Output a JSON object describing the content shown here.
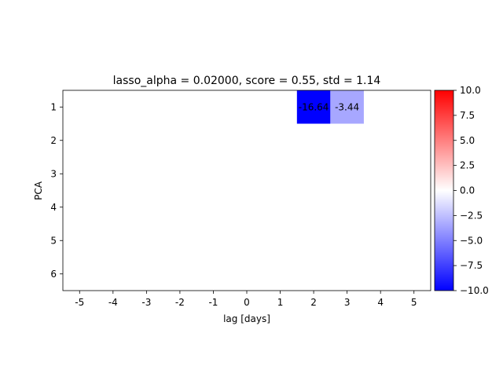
{
  "chart_data": {
    "type": "heatmap",
    "title": "lasso_alpha = 0.02000, score = 0.55, std = 1.14",
    "xlabel": "lag [days]",
    "ylabel": "PCA",
    "x": [
      -5,
      -4,
      -3,
      -2,
      -1,
      0,
      1,
      2,
      3,
      4,
      5
    ],
    "y": [
      1,
      2,
      3,
      4,
      5,
      6
    ],
    "xtick_labels": [
      "-5",
      "-4",
      "-3",
      "-2",
      "-1",
      "0",
      "1",
      "2",
      "3",
      "4",
      "5"
    ],
    "ytick_labels": [
      "1",
      "2",
      "3",
      "4",
      "5",
      "6"
    ],
    "cells": [
      {
        "x": 2,
        "y": 1,
        "value": -16.64,
        "label": "-16.64"
      },
      {
        "x": 3,
        "y": 1,
        "value": -3.44,
        "label": "-3.44"
      }
    ],
    "default_value": 0,
    "colormap": "bwr",
    "vmin": -10,
    "vmax": 10,
    "colorbar_ticks": [
      10,
      7.5,
      5,
      2.5,
      0,
      -2.5,
      -5,
      -7.5,
      -10
    ],
    "colorbar_tick_labels": [
      "10.0",
      "7.5",
      "5.0",
      "2.5",
      "0.0",
      "−2.5",
      "−5.0",
      "−7.5",
      "−10.0"
    ]
  }
}
